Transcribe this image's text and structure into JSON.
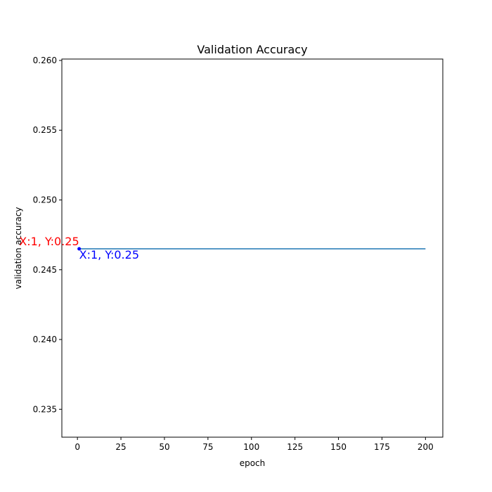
{
  "chart_data": {
    "type": "line",
    "title": "Validation Accuracy",
    "xlabel": "epoch",
    "ylabel": "validation accuracy",
    "xlim": [
      -8.95,
      209.95
    ],
    "ylim": [
      0.233,
      0.2601
    ],
    "x_ticks": [
      0,
      25,
      50,
      75,
      100,
      125,
      150,
      175,
      200
    ],
    "x_tick_labels": [
      "0",
      "25",
      "50",
      "75",
      "100",
      "125",
      "150",
      "175",
      "200"
    ],
    "y_ticks": [
      0.235,
      0.24,
      0.245,
      0.25,
      0.255,
      0.26
    ],
    "y_tick_labels": [
      "0.235",
      "0.240",
      "0.245",
      "0.250",
      "0.255",
      "0.260"
    ],
    "grid": false,
    "series": [
      {
        "color": "#1f77b4",
        "x": [
          1,
          200
        ],
        "y": [
          0.2465,
          0.2465
        ]
      }
    ],
    "highlight_point": {
      "x": 1,
      "y": 0.2465,
      "color": "#0000ff"
    },
    "annotations": [
      {
        "text": "X:1, Y:0.25",
        "color": "#ff0000",
        "placement": "above-left"
      },
      {
        "text": "X:1, Y:0.25",
        "color": "#0000ff",
        "placement": "below-right"
      }
    ]
  }
}
